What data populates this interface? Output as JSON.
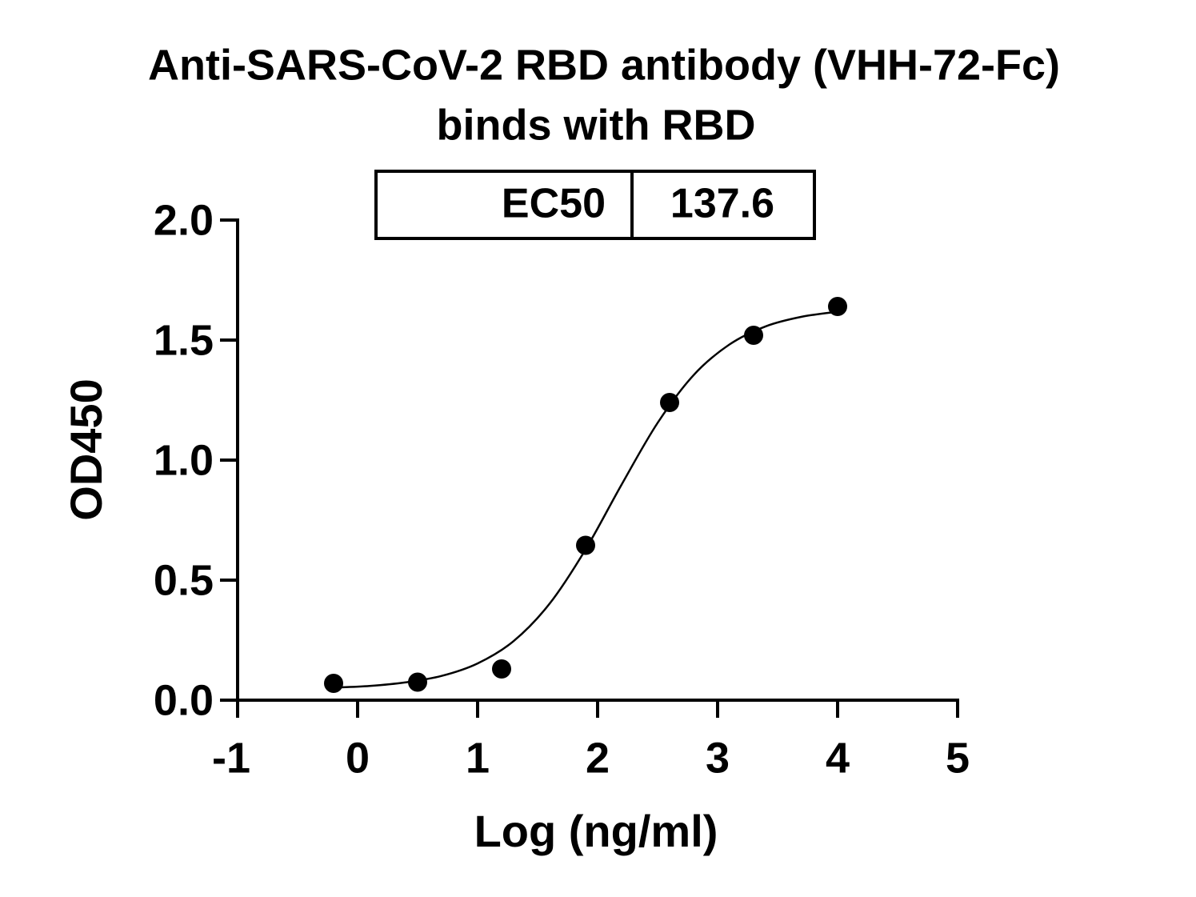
{
  "chart_data": {
    "type": "scatter",
    "title": [
      "Anti-SARS-CoV-2 RBD antibody (VHH-72-Fc)",
      "binds with RBD"
    ],
    "xlabel": "Log (ng/ml)",
    "ylabel": "OD450",
    "x": [
      -0.2,
      0.5,
      1.2,
      1.9,
      2.6,
      3.3,
      4.0
    ],
    "values": [
      0.07,
      0.075,
      0.13,
      0.645,
      1.24,
      1.52,
      1.64
    ],
    "color": "#000000",
    "fit": {
      "x": [
        -0.2,
        0.1,
        0.4,
        0.7,
        1.0,
        1.3,
        1.6,
        1.9,
        2.2,
        2.5,
        2.8,
        3.1,
        3.4,
        3.7,
        4.0
      ],
      "values": [
        0.052,
        0.059,
        0.074,
        0.101,
        0.153,
        0.246,
        0.402,
        0.628,
        0.898,
        1.155,
        1.354,
        1.482,
        1.557,
        1.597,
        1.618
      ]
    },
    "table": {
      "label": "EC50",
      "value": 137.6
    },
    "xlim": [
      -1,
      5
    ],
    "xticks": [
      -1,
      0,
      1,
      2,
      3,
      4,
      5
    ],
    "ylim": [
      0,
      2
    ],
    "yticks": [
      {
        "value": 0,
        "label": "0.0"
      },
      {
        "value": 0.5,
        "label": "0.5"
      },
      {
        "value": 1,
        "label": "1.0"
      },
      {
        "value": 1.5,
        "label": "1.5"
      },
      {
        "value": 2,
        "label": "2.0"
      }
    ]
  }
}
